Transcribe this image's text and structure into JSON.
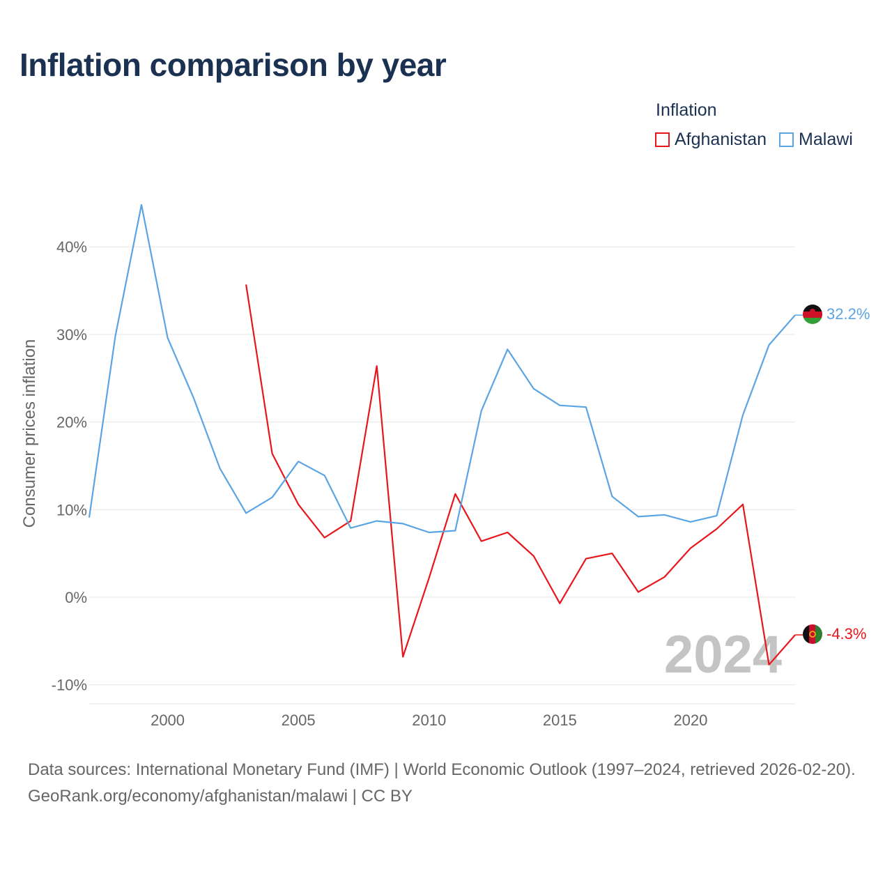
{
  "title": "Inflation comparison by year",
  "legend": {
    "title": "Inflation",
    "items": [
      {
        "label": "Afghanistan",
        "color": "#e8161c"
      },
      {
        "label": "Malawi",
        "color": "#5ba4e3"
      }
    ]
  },
  "footer": {
    "sources": "Data sources: International Monetary Fund (IMF) | World Economic Outlook (1997–2024, retrieved 2026-02-20).",
    "site": "GeoRank.org/economy/afghanistan/malawi | CC BY"
  },
  "chart_data": {
    "type": "line",
    "title": "Inflation comparison by year",
    "xlabel": "",
    "ylabel": "Consumer prices inflation",
    "year_watermark": "2024",
    "xlim": [
      1997,
      2024
    ],
    "ylim": [
      -10,
      45
    ],
    "x_ticks": [
      2000,
      2005,
      2010,
      2015,
      2020
    ],
    "x_tick_labels": [
      "2000",
      "2005",
      "2010",
      "2015",
      "2020"
    ],
    "y_ticks": [
      -10,
      0,
      10,
      20,
      30,
      40
    ],
    "y_tick_labels": [
      "-10%",
      "0%",
      "10%",
      "20%",
      "30%",
      "40%"
    ],
    "grid": true,
    "series": [
      {
        "name": "Afghanistan",
        "color": "#e8161c",
        "end_label": "-4.3%",
        "x": [
          2003,
          2004,
          2005,
          2006,
          2007,
          2008,
          2009,
          2010,
          2011,
          2012,
          2013,
          2014,
          2015,
          2016,
          2017,
          2018,
          2019,
          2020,
          2021,
          2022,
          2023,
          2024
        ],
        "values": [
          35.7,
          16.4,
          10.6,
          6.8,
          8.7,
          26.4,
          -6.8,
          2.2,
          11.8,
          6.4,
          7.4,
          4.7,
          -0.7,
          4.4,
          5.0,
          0.6,
          2.3,
          5.6,
          7.8,
          10.6,
          -7.7,
          -4.3
        ]
      },
      {
        "name": "Malawi",
        "color": "#5ba4e3",
        "end_label": "32.2%",
        "x": [
          1997,
          1998,
          1999,
          2000,
          2001,
          2002,
          2003,
          2004,
          2005,
          2006,
          2007,
          2008,
          2009,
          2010,
          2011,
          2012,
          2013,
          2014,
          2015,
          2016,
          2017,
          2018,
          2019,
          2020,
          2021,
          2022,
          2023,
          2024
        ],
        "values": [
          9.1,
          29.8,
          44.8,
          29.6,
          22.7,
          14.7,
          9.6,
          11.4,
          15.5,
          13.9,
          7.9,
          8.7,
          8.4,
          7.4,
          7.6,
          21.3,
          28.3,
          23.8,
          21.9,
          21.7,
          11.5,
          9.2,
          9.4,
          8.6,
          9.3,
          20.8,
          28.8,
          32.2
        ]
      }
    ]
  }
}
